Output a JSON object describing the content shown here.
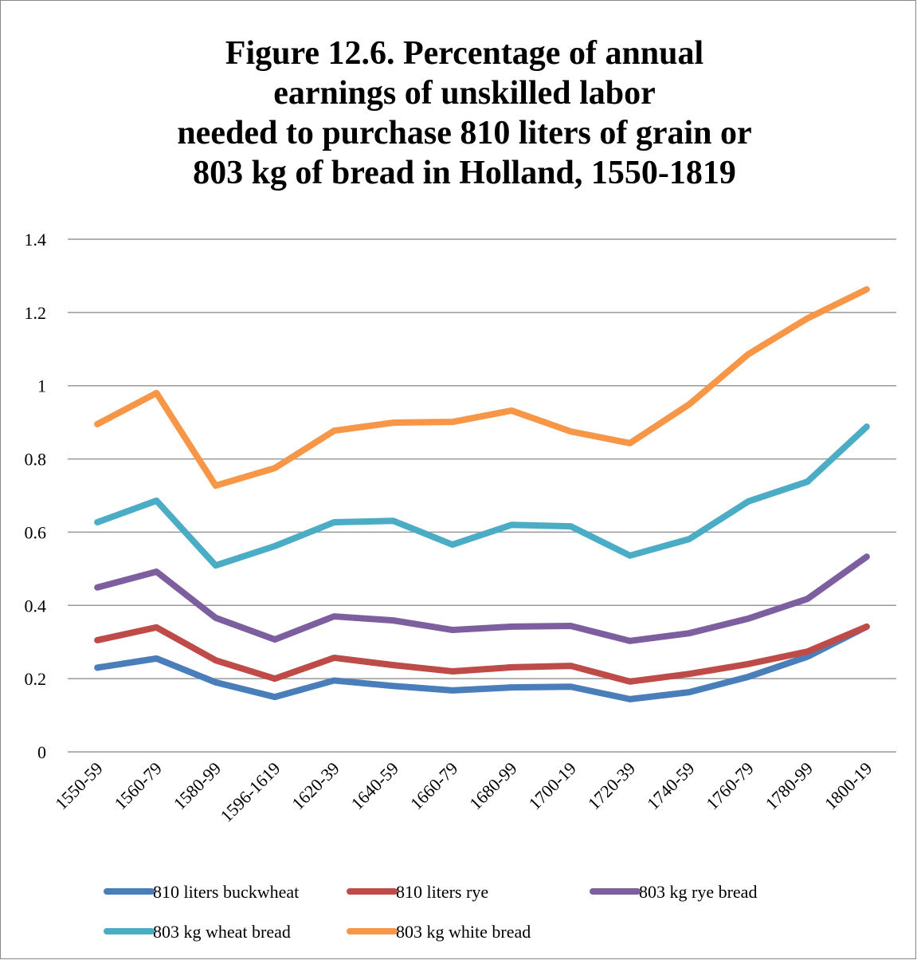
{
  "chart_data": {
    "type": "line",
    "title": [
      "Figure 12.6. Percentage of annual",
      "earnings of unskilled labor",
      "needed to purchase 810 liters of grain or",
      "803 kg of bread in Holland, 1550-1819"
    ],
    "categories": [
      "1550-59",
      "1560-79",
      "1580-99",
      "1596-1619",
      "1620-39",
      "1640-59",
      "1660-79",
      "1680-99",
      "1700-19",
      "1720-39",
      "1740-59",
      "1760-79",
      "1780-99",
      "1800-19"
    ],
    "series": [
      {
        "name": "810 liters buckwheat",
        "color": "#4a7ebb",
        "values": [
          0.23,
          0.255,
          0.19,
          0.15,
          0.195,
          0.18,
          0.168,
          0.176,
          0.178,
          0.144,
          0.163,
          0.205,
          0.26,
          0.342
        ]
      },
      {
        "name": "810 liters rye",
        "color": "#be4b48",
        "values": [
          0.305,
          0.34,
          0.25,
          0.2,
          0.257,
          0.237,
          0.22,
          0.231,
          0.235,
          0.192,
          0.213,
          0.24,
          0.274,
          0.342
        ]
      },
      {
        "name": "803 kg rye bread",
        "color": "#7d5fa0",
        "values": [
          0.449,
          0.492,
          0.366,
          0.307,
          0.37,
          0.359,
          0.333,
          0.342,
          0.344,
          0.303,
          0.324,
          0.364,
          0.418,
          0.533
        ]
      },
      {
        "name": "803 kg wheat bread",
        "color": "#4bacc6",
        "values": [
          0.627,
          0.686,
          0.509,
          0.562,
          0.627,
          0.631,
          0.566,
          0.62,
          0.616,
          0.536,
          0.581,
          0.684,
          0.738,
          0.888
        ]
      },
      {
        "name": "803 kg white bread",
        "color": "#f79646",
        "values": [
          0.895,
          0.98,
          0.727,
          0.775,
          0.877,
          0.899,
          0.901,
          0.932,
          0.875,
          0.843,
          0.949,
          1.086,
          1.184,
          1.263
        ]
      }
    ],
    "ylim": [
      0,
      1.4
    ],
    "yticks": [
      0,
      0.2,
      0.4,
      0.6,
      0.8,
      1,
      1.2,
      1.4
    ],
    "grid": true,
    "legend": "bottom"
  }
}
